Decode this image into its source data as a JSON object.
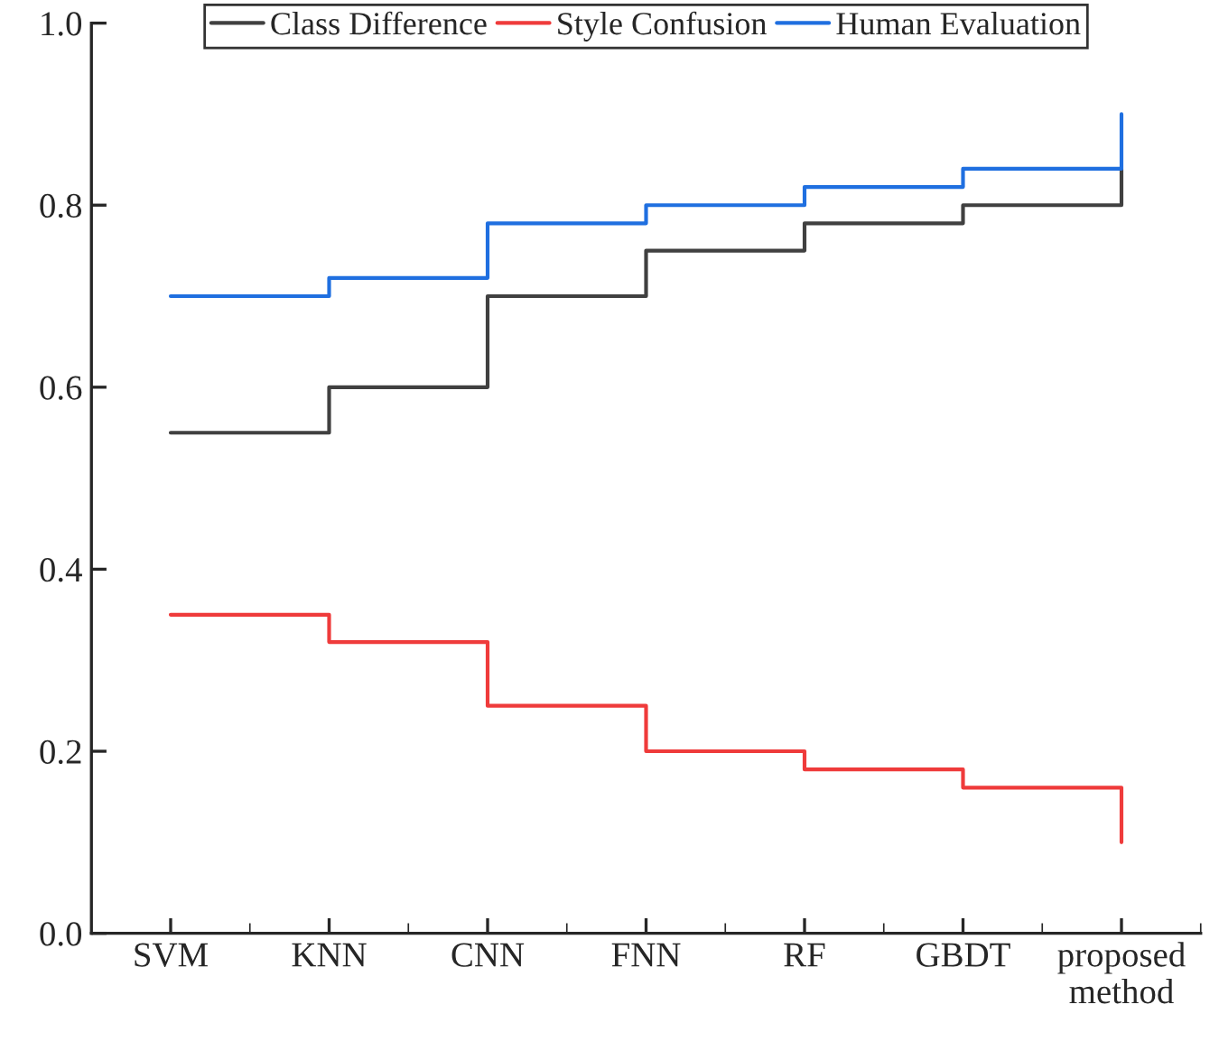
{
  "chart_data": {
    "type": "step",
    "categories": [
      "SVM",
      "KNN",
      "CNN",
      "FNN",
      "RF",
      "GBDT",
      "proposed\nmethod"
    ],
    "series": [
      {
        "name": "Class Difference",
        "color": "#404040",
        "values": [
          0.55,
          0.6,
          0.7,
          0.75,
          0.78,
          0.8,
          0.84
        ]
      },
      {
        "name": "Style Confusion",
        "color": "#ef3b3b",
        "values": [
          0.35,
          0.32,
          0.25,
          0.2,
          0.18,
          0.16,
          0.1
        ]
      },
      {
        "name": "Human Evaluation",
        "color": "#1f6fe0",
        "values": [
          0.7,
          0.72,
          0.78,
          0.8,
          0.82,
          0.84,
          0.9
        ]
      }
    ],
    "ylim": [
      0.0,
      1.0
    ],
    "yticks": [
      {
        "value": 0.0,
        "label": "0.0"
      },
      {
        "value": 0.2,
        "label": "0.2"
      },
      {
        "value": 0.4,
        "label": "0.4"
      },
      {
        "value": 0.6,
        "label": "0.6"
      },
      {
        "value": 0.8,
        "label": "0.8"
      },
      {
        "value": 1.0,
        "label": "1.0"
      }
    ],
    "legend": "top",
    "grid": false
  }
}
